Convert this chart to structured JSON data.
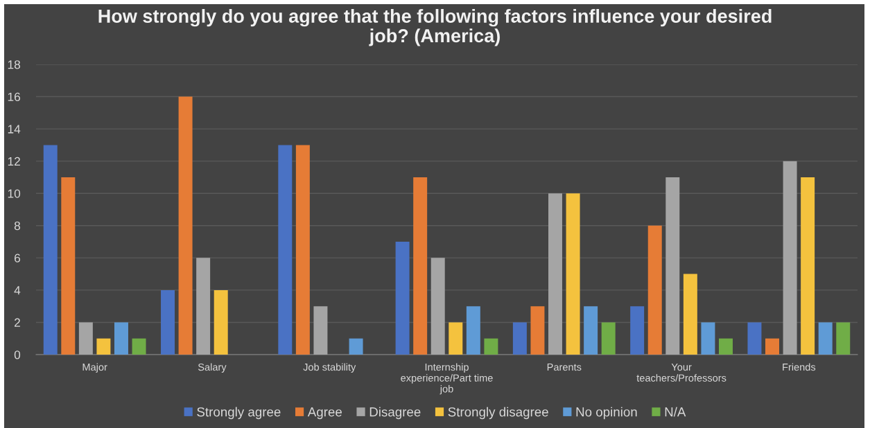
{
  "chart_data": {
    "type": "bar",
    "title": "How strongly do you agree that the following factors influence your desired job? (America)",
    "categories": [
      "Major",
      "Salary",
      "Job stability",
      "Internship experience/Part time job",
      "Parents",
      "Your teachers/Professors",
      "Friends"
    ],
    "series": [
      {
        "name": "Strongly agree",
        "color": "#4a72c4",
        "values": [
          13,
          4,
          13,
          7,
          2,
          3,
          2
        ]
      },
      {
        "name": "Agree",
        "color": "#e67c36",
        "values": [
          11,
          16,
          13,
          11,
          3,
          8,
          1
        ]
      },
      {
        "name": "Disagree",
        "color": "#a5a5a5",
        "values": [
          2,
          6,
          3,
          6,
          10,
          11,
          12
        ]
      },
      {
        "name": "Strongly disagree",
        "color": "#f4c23e",
        "values": [
          1,
          4,
          0,
          2,
          10,
          5,
          11
        ]
      },
      {
        "name": "No opinion",
        "color": "#5f9bd6",
        "values": [
          2,
          0,
          1,
          3,
          3,
          2,
          2
        ]
      },
      {
        "name": "N/A",
        "color": "#70ad47",
        "values": [
          1,
          0,
          0,
          1,
          2,
          1,
          2
        ]
      }
    ],
    "ylim": [
      0,
      18
    ],
    "yticks": [
      0,
      2,
      4,
      6,
      8,
      10,
      12,
      14,
      16,
      18
    ],
    "grid": "y",
    "legend": "bottom"
  }
}
